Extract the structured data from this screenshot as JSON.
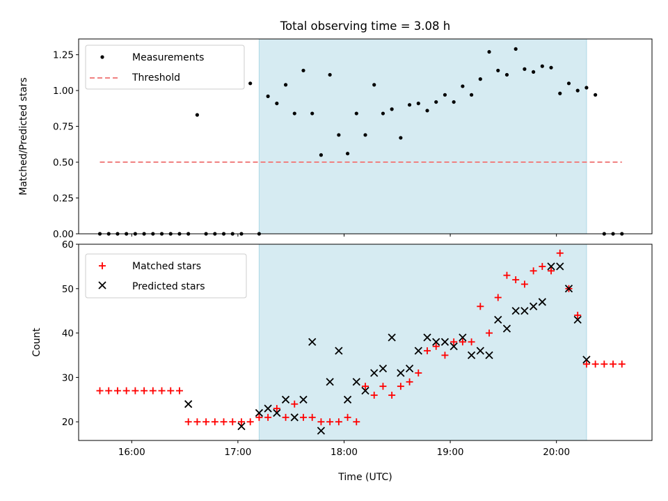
{
  "chart_data": [
    {
      "type": "scatter",
      "title": "Total observing time = 3.08 h",
      "xlabel": "",
      "ylabel": "Matched/Predicted stars",
      "xlim": [
        "15:30",
        "20:54"
      ],
      "ylim": [
        0,
        1.36
      ],
      "yticks": [
        "0.00",
        "0.25",
        "0.50",
        "0.75",
        "1.00",
        "1.25"
      ],
      "legend_placement": "top-left",
      "shaded_interval": [
        "17:12",
        "20:17"
      ],
      "shaded_color": "#add8e6",
      "threshold": {
        "name": "Threshold",
        "y": 0.5,
        "x_range": [
          "15:42",
          "20:37"
        ],
        "color": "#f08080",
        "style": "dashed"
      },
      "series": [
        {
          "name": "Measurements",
          "color": "#000000",
          "marker": "dot",
          "x": [
            "15:42",
            "15:47",
            "15:52",
            "15:57",
            "16:02",
            "16:07",
            "16:12",
            "16:17",
            "16:22",
            "16:27",
            "16:32",
            "16:37",
            "16:42",
            "16:47",
            "16:52",
            "16:57",
            "17:02",
            "17:07",
            "17:12",
            "17:17",
            "17:22",
            "17:27",
            "17:32",
            "17:37",
            "17:42",
            "17:47",
            "17:52",
            "17:57",
            "18:02",
            "18:07",
            "18:12",
            "18:17",
            "18:22",
            "18:27",
            "18:32",
            "18:37",
            "18:42",
            "18:47",
            "18:52",
            "18:57",
            "19:02",
            "19:07",
            "19:12",
            "19:17",
            "19:22",
            "19:27",
            "19:32",
            "19:37",
            "19:42",
            "19:47",
            "19:52",
            "19:57",
            "20:02",
            "20:07",
            "20:12",
            "20:17",
            "20:22",
            "20:27",
            "20:32",
            "20:37"
          ],
          "y": [
            0,
            0,
            0,
            0,
            0,
            0,
            0,
            0,
            0,
            0,
            0,
            0.83,
            0,
            0,
            0,
            0,
            0,
            1.05,
            0,
            0.96,
            0.91,
            1.04,
            0.84,
            1.14,
            0.84,
            0.55,
            1.11,
            0.69,
            0.56,
            0.84,
            0.69,
            1.04,
            0.84,
            0.87,
            0.67,
            0.9,
            0.91,
            0.86,
            0.92,
            0.97,
            0.92,
            1.03,
            0.97,
            1.08,
            1.27,
            1.14,
            1.11,
            1.29,
            1.15,
            1.13,
            1.17,
            1.16,
            0.98,
            1.05,
            1.0,
            1.02,
            0.97,
            0,
            0,
            0
          ]
        }
      ]
    },
    {
      "type": "scatter",
      "title": "",
      "xlabel": "Time (UTC)",
      "ylabel": "Count",
      "xlim": [
        "15:30",
        "20:54"
      ],
      "ylim": [
        15.8,
        60
      ],
      "yticks": [
        "20",
        "30",
        "40",
        "50",
        "60"
      ],
      "xticks": [
        "16:00",
        "17:00",
        "18:00",
        "19:00",
        "20:00"
      ],
      "legend_placement": "top-left",
      "shaded_interval": [
        "17:12",
        "20:17"
      ],
      "shaded_color": "#add8e6",
      "series": [
        {
          "name": "Matched stars",
          "color": "#ff0000",
          "marker": "plus",
          "x": [
            "15:42",
            "15:47",
            "15:52",
            "15:57",
            "16:02",
            "16:07",
            "16:12",
            "16:17",
            "16:22",
            "16:27",
            "16:32",
            "16:37",
            "16:42",
            "16:47",
            "16:52",
            "16:57",
            "17:02",
            "17:07",
            "17:12",
            "17:17",
            "17:22",
            "17:27",
            "17:32",
            "17:37",
            "17:42",
            "17:47",
            "17:52",
            "17:57",
            "18:02",
            "18:07",
            "18:12",
            "18:17",
            "18:22",
            "18:27",
            "18:32",
            "18:37",
            "18:42",
            "18:47",
            "18:52",
            "18:57",
            "19:02",
            "19:07",
            "19:12",
            "19:17",
            "19:22",
            "19:27",
            "19:32",
            "19:37",
            "19:42",
            "19:47",
            "19:52",
            "19:57",
            "20:02",
            "20:07",
            "20:12",
            "20:17",
            "20:22",
            "20:27",
            "20:32",
            "20:37"
          ],
          "y": [
            27,
            27,
            27,
            27,
            27,
            27,
            27,
            27,
            27,
            27,
            20,
            20,
            20,
            20,
            20,
            20,
            20,
            20,
            21,
            21,
            23,
            21,
            24,
            21,
            21,
            20,
            20,
            20,
            21,
            20,
            28,
            26,
            28,
            26,
            28,
            29,
            31,
            36,
            37,
            35,
            38,
            38,
            38,
            46,
            40,
            48,
            53,
            52,
            51,
            54,
            55,
            54,
            58,
            50,
            44,
            33,
            33,
            33,
            33,
            33
          ]
        },
        {
          "name": "Predicted stars",
          "color": "#000000",
          "marker": "x",
          "x": [
            "16:32",
            "17:02",
            "17:12",
            "17:17",
            "17:22",
            "17:27",
            "17:32",
            "17:37",
            "17:42",
            "17:47",
            "17:52",
            "17:57",
            "18:02",
            "18:07",
            "18:12",
            "18:17",
            "18:22",
            "18:27",
            "18:32",
            "18:37",
            "18:42",
            "18:47",
            "18:52",
            "18:57",
            "19:02",
            "19:07",
            "19:12",
            "19:17",
            "19:22",
            "19:27",
            "19:32",
            "19:37",
            "19:42",
            "19:47",
            "19:52",
            "19:57",
            "20:02",
            "20:07",
            "20:12",
            "20:17"
          ],
          "y": [
            24,
            19,
            22,
            23,
            22,
            25,
            21,
            25,
            38,
            18,
            29,
            36,
            25,
            29,
            27,
            31,
            32,
            39,
            31,
            32,
            36,
            39,
            38,
            38,
            37,
            39,
            35,
            36,
            35,
            43,
            41,
            45,
            45,
            46,
            47,
            55,
            55,
            50,
            43,
            34
          ]
        }
      ]
    }
  ]
}
